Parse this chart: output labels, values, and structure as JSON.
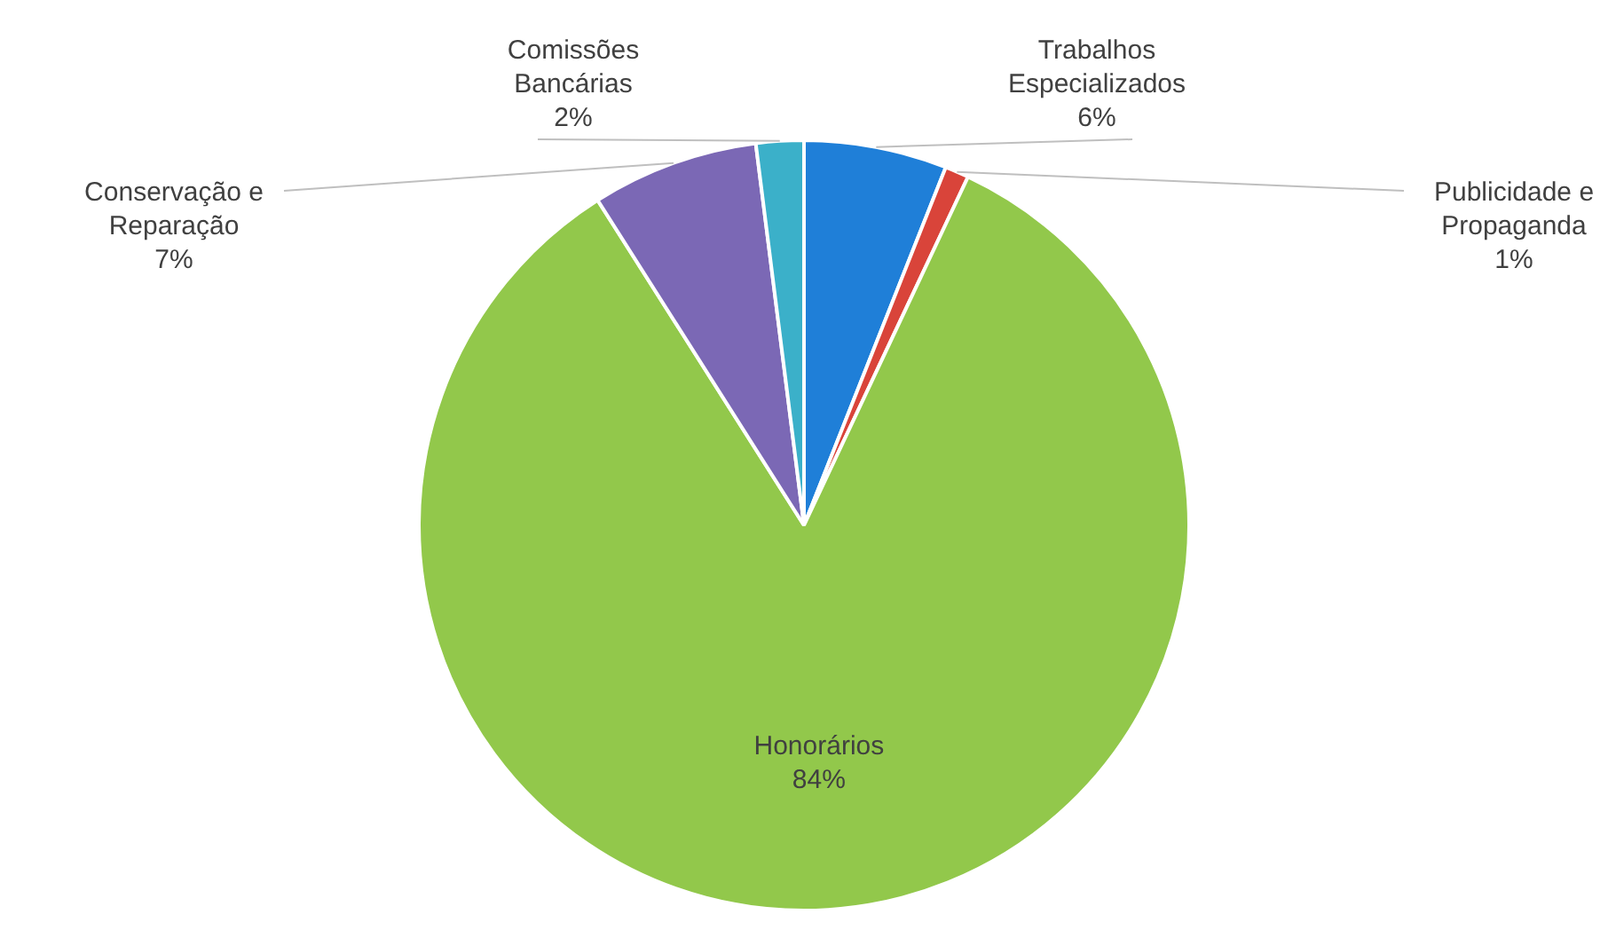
{
  "chart_data": {
    "type": "pie",
    "categories": [
      "Trabalhos Especializados",
      "Publicidade e Propaganda",
      "Honorários",
      "Conservação e Reparação",
      "Comissões Bancárias"
    ],
    "values": [
      6,
      1,
      84,
      7,
      2
    ],
    "colors": [
      "#1f7fd8",
      "#d9443a",
      "#92c84b",
      "#7b68b5",
      "#3bb0c9"
    ],
    "value_labels": [
      "6%",
      "1%",
      "84%",
      "7%",
      "2%"
    ],
    "legend": false
  }
}
